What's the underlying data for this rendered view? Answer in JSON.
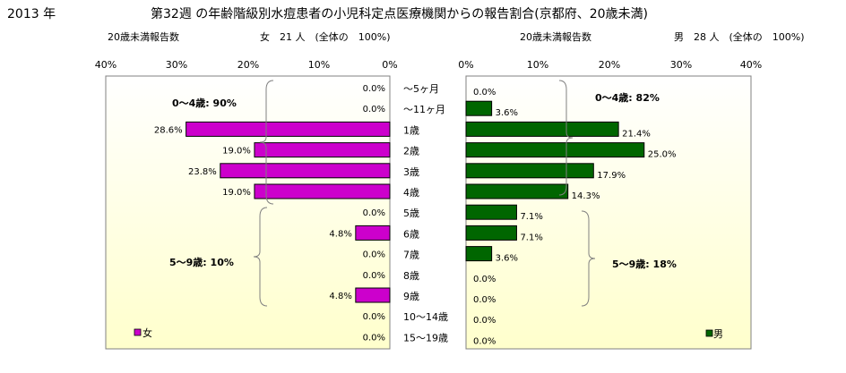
{
  "header": {
    "year": "2013 年",
    "title": "第32週 の年齢階級別水痘患者の小児科定点医療機関からの報告割合(京都府、20歳未満)"
  },
  "colors": {
    "female": "#cc00cc",
    "male": "#006600",
    "panel_top": "#ffffff",
    "panel_bottom": "#ffffcc"
  },
  "chart_data": [
    {
      "type": "bar",
      "orientation": "horizontal",
      "direction": "right-to-left",
      "subtitle_label": "20歳未満報告数",
      "subtitle_info": "女　21 人　(全体の　100%)",
      "xlim": [
        0,
        40
      ],
      "ticks": [
        "40%",
        "30%",
        "20%",
        "10%",
        "0%"
      ],
      "categories": [
        "～5ヶ月",
        "～11ヶ月",
        "1歳",
        "2歳",
        "3歳",
        "4歳",
        "5歳",
        "6歳",
        "7歳",
        "8歳",
        "9歳",
        "10～14歳",
        "15～19歳"
      ],
      "series": [
        {
          "name": "女",
          "values": [
            0.0,
            0.0,
            28.6,
            19.0,
            23.8,
            19.0,
            0.0,
            4.8,
            0.0,
            0.0,
            4.8,
            0.0,
            0.0
          ]
        }
      ],
      "labels": [
        "0.0%",
        "0.0%",
        "28.6%",
        "19.0%",
        "23.8%",
        "19.0%",
        "0.0%",
        "4.8%",
        "0.0%",
        "0.0%",
        "4.8%",
        "0.0%",
        "0.0%"
      ],
      "annotations": [
        "0～4歳: 90%",
        "5～9歳: 10%"
      ],
      "legend": "bottom-left"
    },
    {
      "type": "bar",
      "orientation": "horizontal",
      "direction": "left-to-right",
      "subtitle_label": "20歳未満報告数",
      "subtitle_info": "男　28 人　(全体の　100%)",
      "xlim": [
        0,
        40
      ],
      "ticks": [
        "0%",
        "10%",
        "20%",
        "30%",
        "40%"
      ],
      "series": [
        {
          "name": "男",
          "values": [
            0.0,
            3.6,
            21.4,
            25.0,
            17.9,
            14.3,
            7.1,
            7.1,
            3.6,
            0.0,
            0.0,
            0.0,
            0.0
          ]
        }
      ],
      "labels": [
        "0.0%",
        "3.6%",
        "21.4%",
        "25.0%",
        "17.9%",
        "14.3%",
        "7.1%",
        "7.1%",
        "3.6%",
        "0.0%",
        "0.0%",
        "0.0%",
        "0.0%"
      ],
      "annotations": [
        "0～4歳: 82%",
        "5～9歳: 18%"
      ],
      "legend": "bottom-right"
    }
  ]
}
